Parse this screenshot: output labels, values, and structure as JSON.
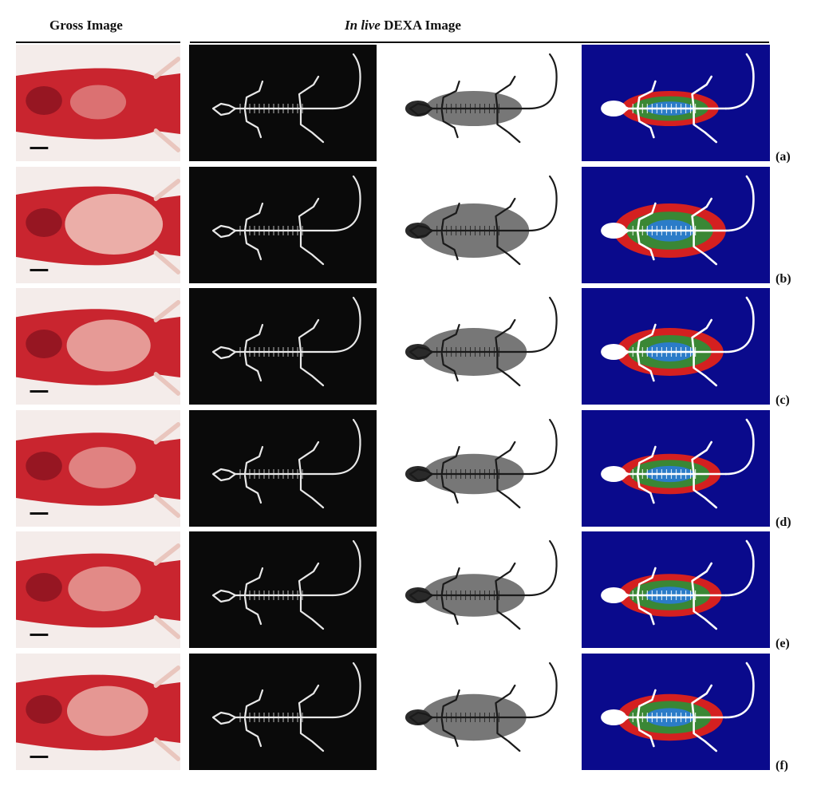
{
  "header": {
    "gross": "Gross Image",
    "dexa_italic": "In live",
    "dexa_rest": " DEXA Image"
  },
  "rows": [
    {
      "label": "(a)",
      "fat": 0.25
    },
    {
      "label": "(b)",
      "fat": 1.0
    },
    {
      "label": "(c)",
      "fat": 0.75
    },
    {
      "label": "(d)",
      "fat": 0.45
    },
    {
      "label": "(e)",
      "fat": 0.55
    },
    {
      "label": "(f)",
      "fat": 0.7
    }
  ],
  "colors": {
    "gross_tissue": "#c9252f",
    "gross_fat": "#f1c7bd",
    "xray_bg": "#0a0a0a",
    "pseudo_bg": "#0a0a8c"
  }
}
